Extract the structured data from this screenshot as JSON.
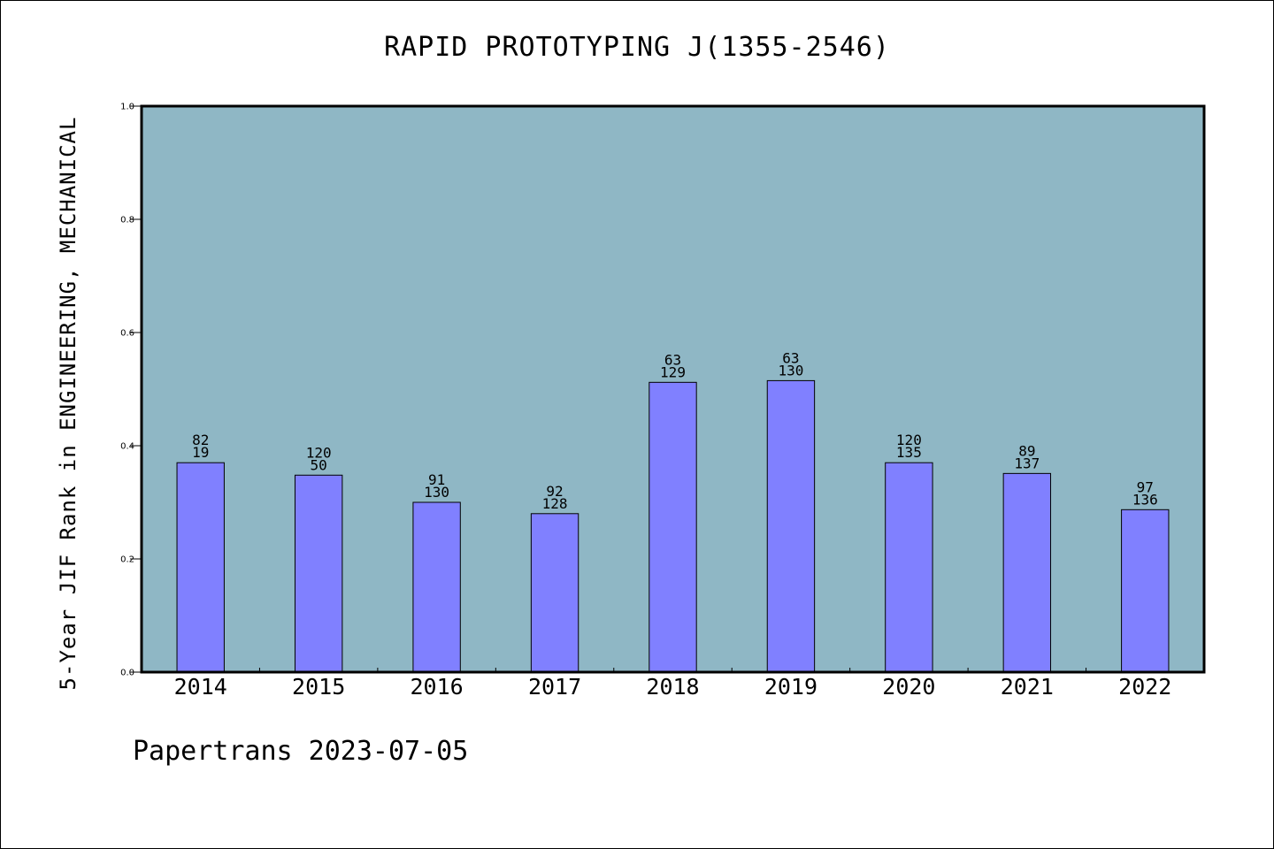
{
  "chart_data": {
    "type": "bar",
    "title": "RAPID PROTOTYPING J(1355-2546)",
    "ylabel": "5-Year JIF Rank in ENGINEERING, MECHANICAL",
    "xlabel": "",
    "categories": [
      "2014",
      "2015",
      "2016",
      "2017",
      "2018",
      "2019",
      "2020",
      "2021",
      "2022"
    ],
    "values": [
      0.37,
      0.348,
      0.3,
      0.28,
      0.512,
      0.515,
      0.37,
      0.351,
      0.287
    ],
    "annotations_top": [
      "82",
      "120",
      "91",
      "92",
      "63",
      "63",
      "120",
      "89",
      "97"
    ],
    "annotations_bottom": [
      "19",
      "50",
      "130",
      "128",
      "129",
      "130",
      "135",
      "137",
      "136"
    ],
    "ylim": [
      0.0,
      1.0
    ],
    "yticks": [
      "0.0",
      "0.2",
      "0.4",
      "0.6",
      "0.8",
      "1.0"
    ],
    "grid": false,
    "legend": "none",
    "colors": {
      "plot_background": "#8fb7c5",
      "bar_fill": "#8080ff",
      "bar_stroke": "#000000"
    }
  },
  "footer": {
    "text": "Papertrans 2023-07-05"
  }
}
